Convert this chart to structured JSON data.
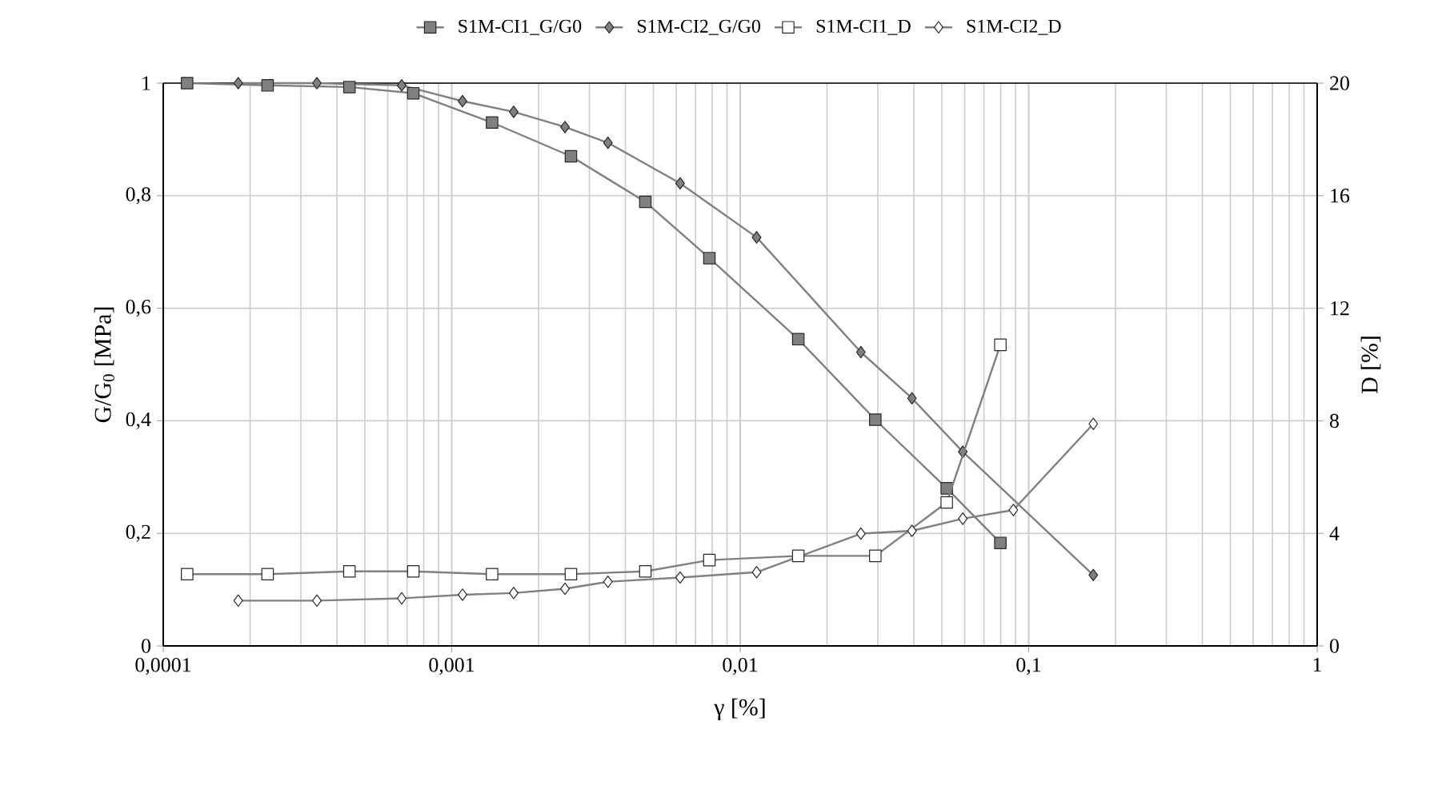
{
  "chart_data": {
    "type": "line",
    "xlabel": "γ [%]",
    "ylabel": "G/G$_{0}$ [MPa]",
    "y2label": "D [%]",
    "log": "x",
    "grid": true,
    "legend": "top",
    "xlim": [
      0.0001,
      1
    ],
    "xticks": [
      {
        "value": 0.0001,
        "label": "0,0001"
      },
      {
        "value": 0.001,
        "label": "0,001"
      },
      {
        "value": 0.01,
        "label": "0,01"
      },
      {
        "value": 0.1,
        "label": "0,1"
      },
      1
    ],
    "ylim": [
      0,
      1
    ],
    "yticks": [
      0,
      {
        "value": 0.2,
        "label": "0,2"
      },
      {
        "value": 0.4,
        "label": "0,4"
      },
      {
        "value": 0.6,
        "label": "0,6"
      },
      {
        "value": 0.8,
        "label": "0,8"
      },
      1
    ],
    "y2lim": [
      0,
      20
    ],
    "y2ticks": [
      0,
      4,
      8,
      12,
      16,
      20
    ],
    "series": [
      {
        "name": "S1M-CI1_G/G0",
        "color": "#808080",
        "marker": "square",
        "x": [
          0.000121,
          0.00023,
          0.000442,
          0.000736,
          0.00138,
          0.00259,
          0.00469,
          0.00782,
          0.0159,
          0.0294,
          0.052,
          0.0798
        ],
        "values": [
          1.0,
          0.996,
          0.993,
          0.982,
          0.93,
          0.87,
          0.789,
          0.689,
          0.545,
          0.402,
          0.28,
          0.183
        ]
      },
      {
        "name": "S1M-CI2_G/G0",
        "color": "#808080",
        "marker": "diamond",
        "x": [
          0.000182,
          0.000341,
          0.000671,
          0.00109,
          0.00164,
          0.00247,
          0.00348,
          0.00619,
          0.0114,
          0.0262,
          0.0394,
          0.0591,
          0.1675
        ],
        "values": [
          1.0,
          1.0,
          0.996,
          0.968,
          0.949,
          0.922,
          0.894,
          0.822,
          0.726,
          0.522,
          0.44,
          0.345,
          0.126
        ]
      },
      {
        "name": "S1M-CI1_D",
        "color": "#ffffff",
        "marker": "square",
        "axis": "y2",
        "x": [
          0.000121,
          0.00023,
          0.000442,
          0.000736,
          0.00138,
          0.00259,
          0.00469,
          0.00782,
          0.0159,
          0.0294,
          0.052,
          0.0798
        ],
        "values": [
          2.55,
          2.55,
          2.65,
          2.65,
          2.55,
          2.55,
          2.65,
          3.05,
          3.2,
          3.2,
          5.1,
          10.7
        ]
      },
      {
        "name": "S1M-CI2_D",
        "color": "#ffffff",
        "marker": "diamond",
        "axis": "y2",
        "x": [
          0.000182,
          0.000341,
          0.000671,
          0.00109,
          0.00164,
          0.00247,
          0.00348,
          0.00619,
          0.0114,
          0.0262,
          0.0394,
          0.0591,
          0.0885,
          0.1675
        ],
        "values": [
          1.61,
          1.61,
          1.69,
          1.82,
          1.88,
          2.03,
          2.28,
          2.43,
          2.62,
          3.99,
          4.09,
          4.52,
          4.83,
          7.89
        ]
      }
    ]
  }
}
